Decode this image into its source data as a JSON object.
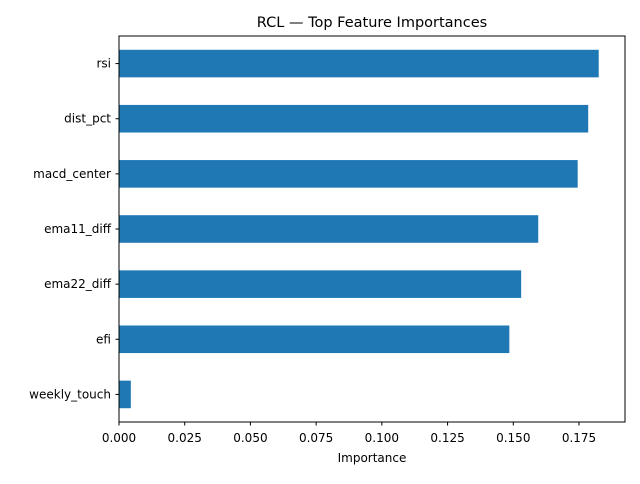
{
  "chart_data": {
    "type": "bar",
    "orientation": "horizontal",
    "title": "RCL — Top Feature Importances",
    "xlabel": "Importance",
    "ylabel": "",
    "categories": [
      "rsi",
      "dist_pct",
      "macd_center",
      "ema11_diff",
      "ema22_diff",
      "efi",
      "weekly_touch"
    ],
    "values": [
      0.1825,
      0.1785,
      0.1745,
      0.1595,
      0.153,
      0.1485,
      0.0045
    ],
    "xlim": [
      0,
      0.1925
    ],
    "xticks": [
      0.0,
      0.025,
      0.05,
      0.075,
      0.1,
      0.125,
      0.15,
      0.175
    ],
    "xtick_labels": [
      "0.000",
      "0.025",
      "0.050",
      "0.075",
      "0.100",
      "0.125",
      "0.150",
      "0.175"
    ],
    "grid": false,
    "legend": "none",
    "bar_color": "#1f77b4"
  }
}
